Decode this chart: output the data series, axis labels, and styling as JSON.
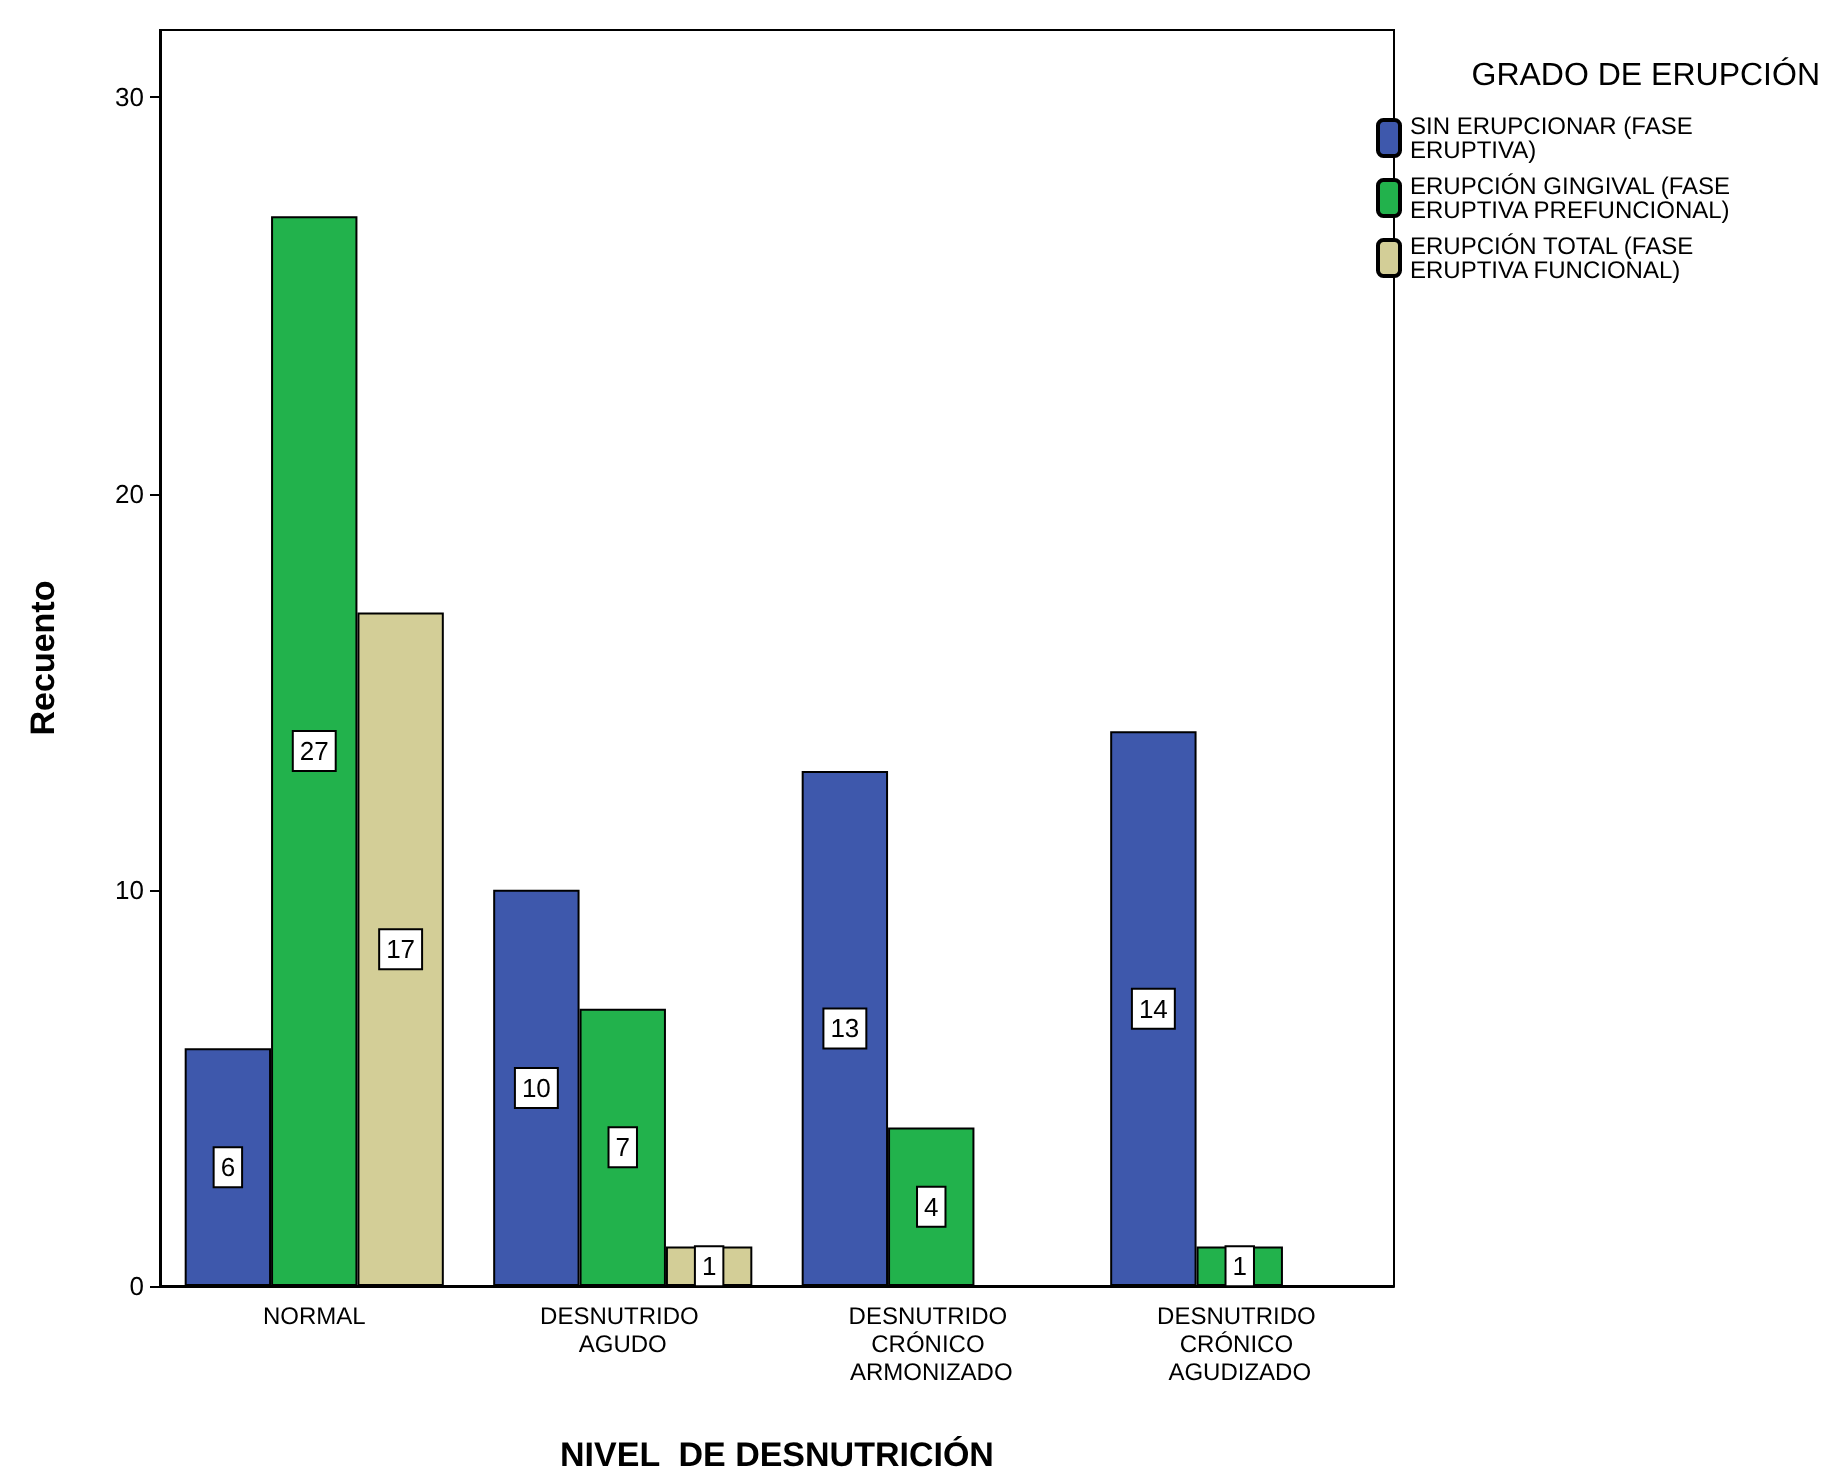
{
  "chart_data": {
    "type": "bar",
    "xlabel": "NIVEL  DE DESNUTRICIÓN",
    "ylabel": "Recuento",
    "legend_title": "GRADO DE ERUPCIÓN",
    "categories": [
      "NORMAL",
      "DESNUTRIDO AGUDO",
      "DESNUTRIDO CRÓNICO ARMONIZADO",
      "DESNUTRIDO CRÓNICO AGUDIZADO"
    ],
    "series": [
      {
        "name": "SIN ERUPCIONAR (FASE ERUPTIVA)",
        "color": "#3e58ac",
        "values": [
          6,
          10,
          13,
          14
        ]
      },
      {
        "name": "ERUPCIÓN GINGIVAL (FASE ERUPTIVA PREFUNCIONAL)",
        "color": "#22b24c",
        "values": [
          27,
          7,
          4,
          1
        ]
      },
      {
        "name": "ERUPCIÓN TOTAL (FASE ERUPTIVA FUNCIONAL)",
        "color": "#d3ce97",
        "values": [
          17,
          1,
          null,
          null
        ]
      }
    ],
    "ylim": [
      0,
      31.7
    ],
    "yticks": [
      0,
      10,
      20,
      30
    ],
    "data_labels": true,
    "legend": "top right"
  }
}
